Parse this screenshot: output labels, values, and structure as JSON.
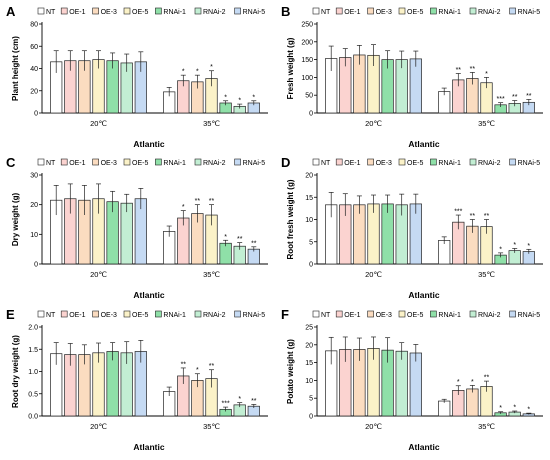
{
  "legend": [
    "NT",
    "OE-1",
    "OE-3",
    "OE-5",
    "RNAi-1",
    "RNAi-2",
    "RNAi-5"
  ],
  "colors": {
    "NT": "#ffffff",
    "OE-1": "#fbd3d0",
    "OE-3": "#fbdcc0",
    "OE-5": "#fbf2c8",
    "RNAi-1": "#8fe0a8",
    "RNAi-2": "#c2eed3",
    "RNAi-5": "#c5daf3",
    "stroke": "#222222"
  },
  "chart_data": [
    {
      "panel": "A",
      "type": "bar",
      "ylabel": "Plant height (cm)",
      "xlabel": "Atlantic",
      "categories": [
        "20℃",
        "35℃"
      ],
      "ylim": [
        0,
        80
      ],
      "yticks": [
        0,
        20,
        40,
        60,
        80
      ],
      "series": [
        {
          "name": "NT",
          "values": [
            46,
            19
          ],
          "errors": [
            10,
            4
          ],
          "sig": [
            "",
            ""
          ]
        },
        {
          "name": "OE-1",
          "values": [
            47,
            29
          ],
          "errors": [
            9,
            5
          ],
          "sig": [
            "",
            "*"
          ]
        },
        {
          "name": "OE-3",
          "values": [
            47,
            28
          ],
          "errors": [
            9,
            6
          ],
          "sig": [
            "",
            "*"
          ]
        },
        {
          "name": "OE-5",
          "values": [
            48,
            31
          ],
          "errors": [
            8,
            7
          ],
          "sig": [
            "",
            "*"
          ]
        },
        {
          "name": "RNAi-1",
          "values": [
            47,
            9
          ],
          "errors": [
            7,
            2
          ],
          "sig": [
            "",
            "*"
          ]
        },
        {
          "name": "RNAi-2",
          "values": [
            45,
            6
          ],
          "errors": [
            8,
            2
          ],
          "sig": [
            "",
            "*"
          ]
        },
        {
          "name": "RNAi-5",
          "values": [
            46,
            9
          ],
          "errors": [
            9,
            2
          ],
          "sig": [
            "",
            "*"
          ]
        }
      ]
    },
    {
      "panel": "B",
      "type": "bar",
      "ylabel": "Fresh weight (g)",
      "xlabel": "Atlantic",
      "categories": [
        "20℃",
        "35℃"
      ],
      "ylim": [
        0,
        250
      ],
      "yticks": [
        0,
        50,
        100,
        150,
        200,
        250
      ],
      "series": [
        {
          "name": "NT",
          "values": [
            153,
            60
          ],
          "errors": [
            35,
            10
          ],
          "sig": [
            "",
            ""
          ]
        },
        {
          "name": "OE-1",
          "values": [
            156,
            93
          ],
          "errors": [
            25,
            18
          ],
          "sig": [
            "",
            "**"
          ]
        },
        {
          "name": "OE-3",
          "values": [
            163,
            97
          ],
          "errors": [
            27,
            17
          ],
          "sig": [
            "",
            "**"
          ]
        },
        {
          "name": "OE-5",
          "values": [
            162,
            85
          ],
          "errors": [
            30,
            15
          ],
          "sig": [
            "",
            "*"
          ]
        },
        {
          "name": "RNAi-1",
          "values": [
            150,
            23
          ],
          "errors": [
            25,
            6
          ],
          "sig": [
            "",
            "***"
          ]
        },
        {
          "name": "RNAi-2",
          "values": [
            150,
            27
          ],
          "errors": [
            24,
            8
          ],
          "sig": [
            "",
            "**"
          ]
        },
        {
          "name": "RNAi-5",
          "values": [
            152,
            30
          ],
          "errors": [
            22,
            8
          ],
          "sig": [
            "",
            "**"
          ]
        }
      ]
    },
    {
      "panel": "C",
      "type": "bar",
      "ylabel": "Dry weight (g)",
      "xlabel": "Atlantic",
      "categories": [
        "20℃",
        "35℃"
      ],
      "ylim": [
        0,
        30
      ],
      "yticks": [
        0,
        10,
        20,
        30
      ],
      "series": [
        {
          "name": "NT",
          "values": [
            21.5,
            11
          ],
          "errors": [
            5,
            1.8
          ],
          "sig": [
            "",
            ""
          ]
        },
        {
          "name": "OE-1",
          "values": [
            22,
            15.5
          ],
          "errors": [
            5,
            2.5
          ],
          "sig": [
            "",
            "*"
          ]
        },
        {
          "name": "OE-3",
          "values": [
            21.5,
            17
          ],
          "errors": [
            5,
            3
          ],
          "sig": [
            "",
            "**"
          ]
        },
        {
          "name": "OE-5",
          "values": [
            22,
            16.5
          ],
          "errors": [
            5,
            3.5
          ],
          "sig": [
            "",
            "**"
          ]
        },
        {
          "name": "RNAi-1",
          "values": [
            21,
            7
          ],
          "errors": [
            3.5,
            1
          ],
          "sig": [
            "",
            "*"
          ]
        },
        {
          "name": "RNAi-2",
          "values": [
            20.5,
            6
          ],
          "errors": [
            3,
            1.2
          ],
          "sig": [
            "",
            "**"
          ]
        },
        {
          "name": "RNAi-5",
          "values": [
            22,
            5
          ],
          "errors": [
            3.5,
            0.8
          ],
          "sig": [
            "",
            "**"
          ]
        }
      ]
    },
    {
      "panel": "D",
      "type": "bar",
      "ylabel": "Root fresh weight (g)",
      "xlabel": "Atlantic",
      "categories": [
        "20℃",
        "35℃"
      ],
      "ylim": [
        0,
        20
      ],
      "yticks": [
        0,
        5,
        10,
        15,
        20
      ],
      "series": [
        {
          "name": "NT",
          "values": [
            13.3,
            5.3
          ],
          "errors": [
            2.8,
            0.8
          ],
          "sig": [
            "",
            ""
          ]
        },
        {
          "name": "OE-1",
          "values": [
            13.3,
            9.4
          ],
          "errors": [
            2.5,
            1.6
          ],
          "sig": [
            "",
            "***"
          ]
        },
        {
          "name": "OE-3",
          "values": [
            13.3,
            8.5
          ],
          "errors": [
            2.0,
            1.5
          ],
          "sig": [
            "",
            "**"
          ]
        },
        {
          "name": "OE-5",
          "values": [
            13.5,
            8.4
          ],
          "errors": [
            2.0,
            1.6
          ],
          "sig": [
            "",
            "**"
          ]
        },
        {
          "name": "RNAi-1",
          "values": [
            13.5,
            2.0
          ],
          "errors": [
            2.0,
            0.5
          ],
          "sig": [
            "",
            "*"
          ]
        },
        {
          "name": "RNAi-2",
          "values": [
            13.3,
            3.0
          ],
          "errors": [
            2.4,
            0.5
          ],
          "sig": [
            "",
            "*"
          ]
        },
        {
          "name": "RNAi-5",
          "values": [
            13.5,
            2.8
          ],
          "errors": [
            2.2,
            0.5
          ],
          "sig": [
            "",
            "*"
          ]
        }
      ]
    },
    {
      "panel": "E",
      "type": "bar",
      "ylabel": "Root dry weight (g)",
      "xlabel": "Atlantic",
      "categories": [
        "20℃",
        "35℃"
      ],
      "ylim": [
        0,
        2.0
      ],
      "yticks": [
        0.0,
        0.5,
        1.0,
        1.5,
        2.0
      ],
      "series": [
        {
          "name": "NT",
          "values": [
            1.4,
            0.55
          ],
          "errors": [
            0.25,
            0.1
          ],
          "sig": [
            "",
            ""
          ]
        },
        {
          "name": "OE-1",
          "values": [
            1.38,
            0.9
          ],
          "errors": [
            0.25,
            0.18
          ],
          "sig": [
            "",
            "**"
          ]
        },
        {
          "name": "OE-3",
          "values": [
            1.38,
            0.8
          ],
          "errors": [
            0.22,
            0.15
          ],
          "sig": [
            "",
            "*"
          ]
        },
        {
          "name": "OE-5",
          "values": [
            1.42,
            0.84
          ],
          "errors": [
            0.22,
            0.2
          ],
          "sig": [
            "",
            "**"
          ]
        },
        {
          "name": "RNAi-1",
          "values": [
            1.45,
            0.15
          ],
          "errors": [
            0.2,
            0.05
          ],
          "sig": [
            "",
            "***"
          ]
        },
        {
          "name": "RNAi-2",
          "values": [
            1.42,
            0.25
          ],
          "errors": [
            0.25,
            0.05
          ],
          "sig": [
            "",
            "*"
          ]
        },
        {
          "name": "RNAi-5",
          "values": [
            1.45,
            0.22
          ],
          "errors": [
            0.25,
            0.04
          ],
          "sig": [
            "",
            "**"
          ]
        }
      ]
    },
    {
      "panel": "F",
      "type": "bar",
      "ylabel": "Potato weight (g)",
      "xlabel": "Atlantic",
      "categories": [
        "20℃",
        "35℃"
      ],
      "ylim": [
        0,
        25
      ],
      "yticks": [
        0,
        5,
        10,
        15,
        20,
        25
      ],
      "series": [
        {
          "name": "NT",
          "values": [
            18.3,
            4.2
          ],
          "errors": [
            3.8,
            0.5
          ],
          "sig": [
            "",
            ""
          ]
        },
        {
          "name": "OE-1",
          "values": [
            18.7,
            7.2
          ],
          "errors": [
            3.5,
            1.3
          ],
          "sig": [
            "",
            "*"
          ]
        },
        {
          "name": "OE-3",
          "values": [
            18.7,
            7.6
          ],
          "errors": [
            3.2,
            1.0
          ],
          "sig": [
            "",
            "*"
          ]
        },
        {
          "name": "OE-5",
          "values": [
            19.0,
            8.3
          ],
          "errors": [
            3.2,
            1.5
          ],
          "sig": [
            "",
            "**"
          ]
        },
        {
          "name": "RNAi-1",
          "values": [
            18.5,
            0.9
          ],
          "errors": [
            3.5,
            0.3
          ],
          "sig": [
            "",
            "*"
          ]
        },
        {
          "name": "RNAi-2",
          "values": [
            18.2,
            1.1
          ],
          "errors": [
            2.4,
            0.3
          ],
          "sig": [
            "",
            "*"
          ]
        },
        {
          "name": "RNAi-5",
          "values": [
            17.7,
            0.6
          ],
          "errors": [
            2.4,
            0.2
          ],
          "sig": [
            "",
            "*"
          ]
        }
      ]
    }
  ]
}
